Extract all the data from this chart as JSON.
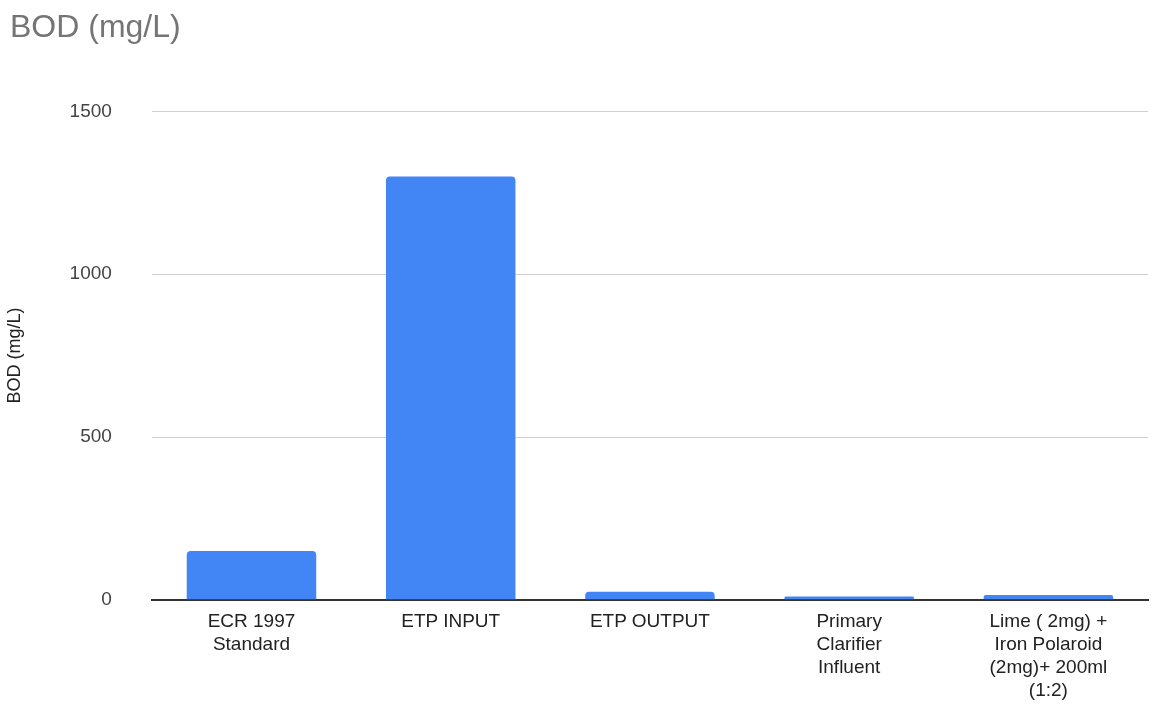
{
  "chart_data": {
    "type": "bar",
    "title": "BOD (mg/L)",
    "ylabel": "BOD (mg/L)",
    "categories": [
      "ECR 1997 Standard",
      "ETP INPUT",
      "ETP OUTPUT",
      "Primary Clarifier Influent",
      "Lime ( 2mg) + Iron Polaroid (2mg)+ 200ml (1:2)"
    ],
    "values": [
      150,
      1300,
      25,
      10,
      15
    ],
    "color": "#4285f4",
    "ylim": [
      0,
      1500
    ],
    "yticks": [
      0,
      500,
      1000,
      1500
    ],
    "grid": "y",
    "legend": false
  }
}
